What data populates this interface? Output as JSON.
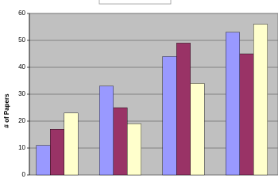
{
  "chart_data": {
    "type": "bar",
    "y_label": "# of Papers",
    "categories": [
      null,
      null,
      null,
      null
    ],
    "series": [
      {
        "color": "#9999ff",
        "values": [
          11,
          33,
          44,
          53
        ]
      },
      {
        "color": "#993366",
        "values": [
          17,
          25,
          49,
          45
        ]
      },
      {
        "color": "#ffffcc",
        "values": [
          23,
          19,
          34,
          56
        ]
      }
    ],
    "ylim": [
      0,
      60
    ],
    "yticks": [
      0,
      10,
      20,
      30,
      40,
      50,
      60
    ],
    "grid": true
  }
}
